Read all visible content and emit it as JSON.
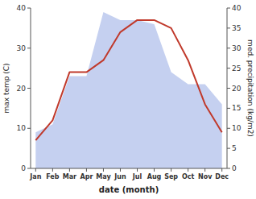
{
  "chart_data": {
    "type": "line",
    "xlabel": "date (month)",
    "ylabel": "max temp (C)",
    "y2label": "med. precipitation (kg/m2)",
    "categories": [
      "Jan",
      "Feb",
      "Mar",
      "Apr",
      "May",
      "Jun",
      "Jul",
      "Aug",
      "Sep",
      "Oct",
      "Nov",
      "Dec"
    ],
    "series": [
      {
        "type": "area",
        "axis": "y2",
        "color": "#c5d0f0",
        "values": [
          9,
          11,
          23,
          23,
          39,
          37,
          37,
          36,
          24,
          21,
          21,
          16
        ]
      },
      {
        "type": "line",
        "color": "#c0392b",
        "values": [
          7,
          12,
          24,
          24,
          27,
          34,
          37,
          37,
          35,
          27,
          16,
          9
        ]
      }
    ],
    "ylim": [
      0,
      40
    ],
    "yticks": [
      0,
      10,
      20,
      30,
      40
    ],
    "y2lim": [
      0,
      40
    ],
    "y2ticks": [
      0,
      5,
      10,
      15,
      20,
      25,
      30,
      35,
      40
    ],
    "grid": false
  }
}
